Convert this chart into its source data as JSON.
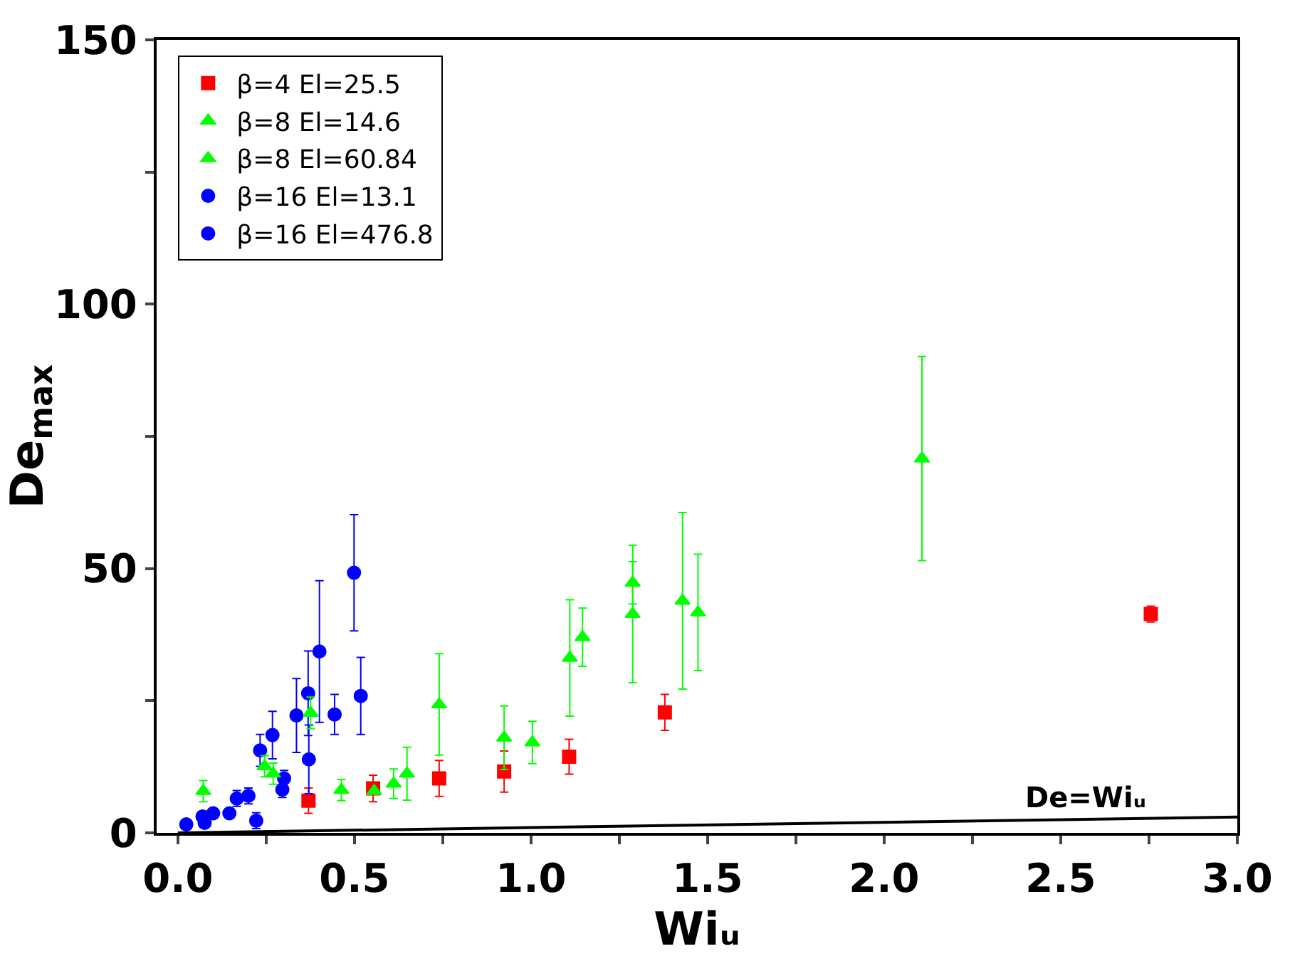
{
  "chart_data": {
    "type": "scatter",
    "xlabel": "Wiᵤ",
    "ylabel": "De$_{max}$",
    "xlim": [
      -0.06,
      3.0
    ],
    "ylim": [
      0,
      150
    ],
    "xticks": [
      {
        "value": 0,
        "label": "0.0"
      },
      {
        "value": 0.25,
        "label": null
      },
      0.5,
      {
        "value": 0.75,
        "label": null
      },
      {
        "value": 1,
        "label": "1.0"
      },
      {
        "value": 1.25,
        "label": null
      },
      1.5,
      {
        "value": 1.75,
        "label": null
      },
      {
        "value": 2,
        "label": "2.0"
      },
      {
        "value": 2.25,
        "label": null
      },
      2.5,
      {
        "value": 2.75,
        "label": null
      },
      {
        "value": 3,
        "label": "3.0"
      }
    ],
    "yticks": [
      0,
      {
        "value": 25,
        "label": null
      },
      50,
      {
        "value": 75,
        "label": null
      },
      100,
      {
        "value": 125,
        "label": null
      },
      150
    ],
    "legend": "top left",
    "series": [
      {
        "name": "β=4 El=25.5",
        "color": "#ff0000",
        "marker": "square",
        "x": [
          0.37,
          0.553,
          0.74,
          0.924,
          1.108,
          1.379,
          2.755
        ],
        "values": [
          6.1,
          8.4,
          10.3,
          11.6,
          14.4,
          22.8,
          41.4
        ],
        "errors": [
          2.4,
          2.5,
          3.4,
          3.9,
          3.3,
          3.4,
          1.5
        ]
      },
      {
        "name": "β=8 El=14.6",
        "color": "#00ff00",
        "marker": "triangle",
        "x": [
          0.072,
          0.222,
          0.246,
          0.611,
          1.004,
          1.146,
          1.288,
          1.429
        ],
        "values": [
          7.9,
          null,
          12.6,
          9.3,
          17.1,
          37.0,
          47.3,
          43.9
        ],
        "errors": [
          2,
          null,
          2,
          2.8,
          4,
          5.5,
          4,
          16.7
        ]
      },
      {
        "name": "β=8 El=60.84",
        "color": "#00ff00",
        "marker": "triangle",
        "x": [
          0.27,
          0.376,
          0.463,
          0.556,
          0.649,
          0.74,
          0.924,
          1.11,
          1.288,
          1.473,
          2.107
        ],
        "values": [
          11.2,
          22.7,
          8.1,
          7.9,
          11.2,
          24.3,
          18.0,
          33.1,
          41.4,
          41.7,
          70.8
        ],
        "errors": [
          2,
          3,
          2,
          null,
          5,
          9.6,
          6,
          11,
          13,
          11,
          19.3
        ]
      },
      {
        "name": "β=16 El=13.1",
        "color": "#0000ff",
        "marker": "circle",
        "x": [
          0.024,
          0.07,
          0.1,
          0.167,
          0.2,
          0.233,
          0.268,
          0.301,
          0.336,
          0.369,
          0.401,
          0.499
        ],
        "values": [
          1.6,
          3.1,
          3.7,
          6.5,
          7.0,
          15.6,
          18.5,
          10.3,
          22.2,
          26.4,
          34.3,
          49.2
        ],
        "errors": [
          null,
          null,
          null,
          1.5,
          1.5,
          3,
          4.5,
          1.5,
          7,
          8,
          13.4,
          11
        ]
      },
      {
        "name": "β=16 El=476.8",
        "color": "#0000ff",
        "marker": "circle",
        "x": [
          0.076,
          0.146,
          0.222,
          0.296,
          0.371,
          0.444,
          0.518
        ],
        "values": [
          1.9,
          3.7,
          2.3,
          8.2,
          13.9,
          22.4,
          25.9
        ],
        "errors": [
          null,
          null,
          1.5,
          1.5,
          6.5,
          3.8,
          7.3
        ]
      },
      {
        "type": "line",
        "color": "#000000",
        "marker": "none",
        "x": [
          0,
          3.0
        ],
        "values": [
          0,
          3.0
        ]
      }
    ],
    "annotations": [
      {
        "text": "De=Wiᵤ",
        "x": 2.75,
        "y": 3.0
      }
    ]
  }
}
